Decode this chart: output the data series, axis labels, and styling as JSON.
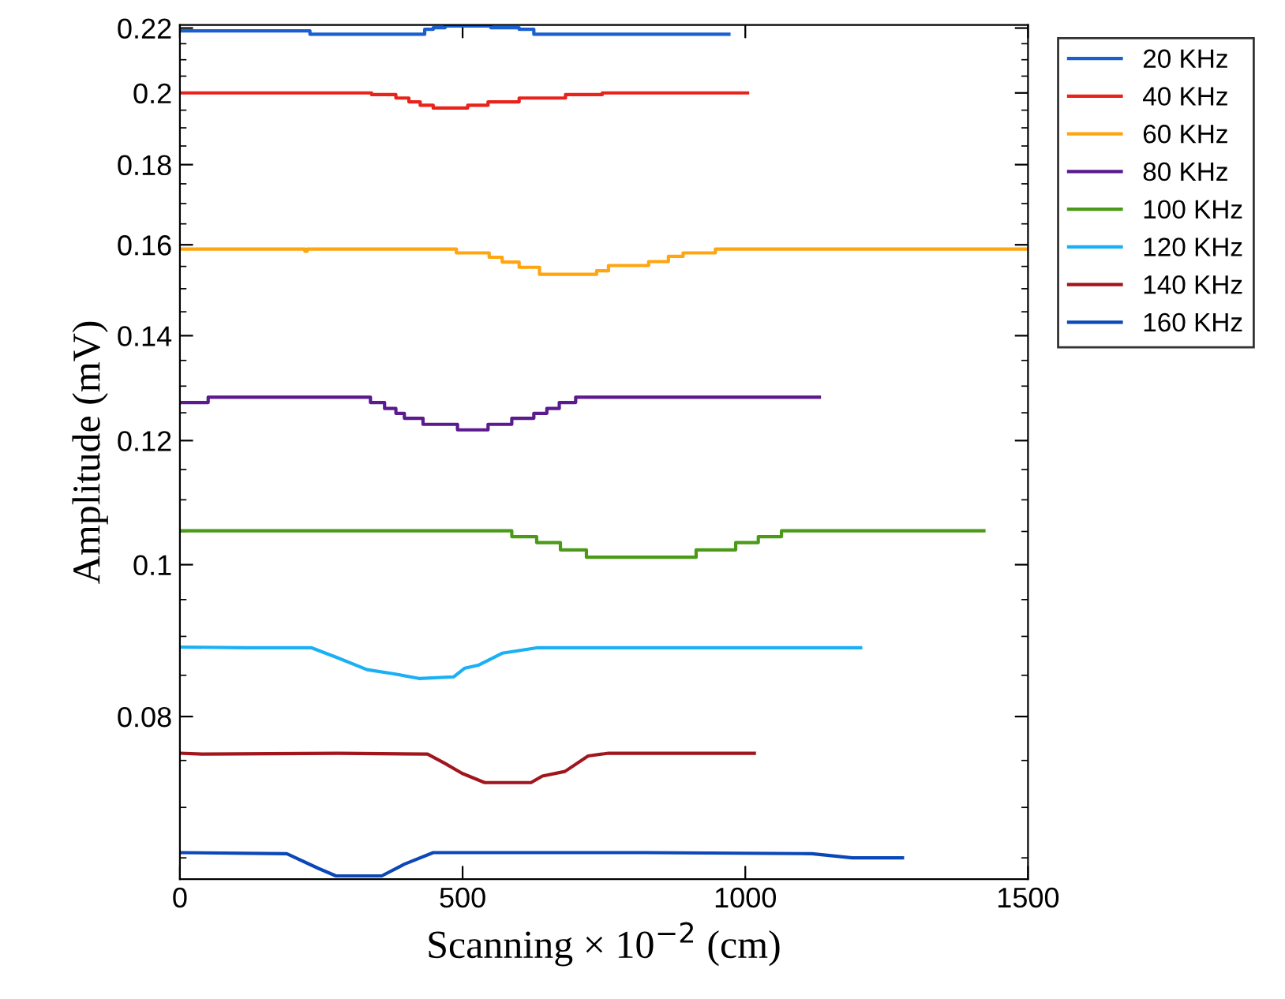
{
  "chart_data": {
    "type": "line",
    "xlabel": "Scanning × 10$^{−2}$ (cm)",
    "ylabel": "Amplitude (mV)",
    "log": "y",
    "xlim": [
      0,
      1500
    ],
    "xticks": [
      0,
      500,
      1000,
      1500
    ],
    "ylim": [
      0.063,
      0.221
    ],
    "yticks": [
      {
        "value": 0.065,
        "label": null
      },
      {
        "value": 0.07,
        "label": null
      },
      {
        "value": 0.075,
        "label": null
      },
      0.08,
      {
        "value": 0.085,
        "label": null
      },
      {
        "value": 0.09,
        "label": null
      },
      {
        "value": 0.095,
        "label": null
      },
      0.1,
      {
        "value": 0.105,
        "label": null
      },
      {
        "value": 0.11,
        "label": null
      },
      {
        "value": 0.115,
        "label": null
      },
      0.12,
      {
        "value": 0.125,
        "label": null
      },
      {
        "value": 0.13,
        "label": null
      },
      {
        "value": 0.135,
        "label": null
      },
      0.14,
      {
        "value": 0.145,
        "label": null
      },
      {
        "value": 0.15,
        "label": null
      },
      {
        "value": 0.155,
        "label": null
      },
      0.16,
      {
        "value": 0.165,
        "label": null
      },
      {
        "value": 0.17,
        "label": null
      },
      {
        "value": 0.175,
        "label": null
      },
      0.18,
      {
        "value": 0.185,
        "label": null
      },
      {
        "value": 0.19,
        "label": null
      },
      {
        "value": 0.195,
        "label": null
      },
      0.2,
      {
        "value": 0.205,
        "label": null
      },
      {
        "value": 0.21,
        "label": null
      },
      {
        "value": 0.215,
        "label": null
      },
      0.22
    ],
    "grid": false,
    "legend": "right",
    "marker": "none",
    "line_style": "solid",
    "series": [
      {
        "name": "20 KHz",
        "type": "step",
        "color": "#1a5fd0",
        "x": [
          0,
          230,
          433,
          448,
          469,
          550,
          600,
          626,
          971
        ],
        "values": [
          0.2191,
          0.218,
          0.2196,
          0.2201,
          0.2207,
          0.2201,
          0.2196,
          0.218,
          0.218
        ]
      },
      {
        "name": "40 KHz",
        "type": "step",
        "color": "#e8231b",
        "x": [
          0,
          339,
          382,
          405,
          425,
          448,
          509,
          545,
          600,
          682,
          747,
          1004
        ],
        "values": [
          0.2,
          0.1995,
          0.1985,
          0.1974,
          0.1964,
          0.1956,
          0.1964,
          0.1974,
          0.1985,
          0.1995,
          0.2,
          0.2
        ]
      },
      {
        "name": "60 KHz",
        "type": "step",
        "color": "#ffa510",
        "x": [
          0,
          221,
          225,
          489,
          547,
          570,
          600,
          636,
          737,
          758,
          829,
          864,
          890,
          947,
          1500
        ],
        "values": [
          0.159,
          0.1585,
          0.159,
          0.1581,
          0.1571,
          0.156,
          0.1548,
          0.1532,
          0.154,
          0.1552,
          0.1561,
          0.1573,
          0.1581,
          0.159,
          0.159
        ]
      },
      {
        "name": "80 KHz",
        "type": "step",
        "color": "#5b1a8e",
        "x": [
          0,
          50,
          337,
          362,
          382,
          397,
          430,
          491,
          545,
          587,
          626,
          649,
          671,
          700,
          1131
        ],
        "values": [
          0.1269,
          0.1279,
          0.1269,
          0.1258,
          0.1249,
          0.124,
          0.1229,
          0.1219,
          0.1229,
          0.124,
          0.1249,
          0.1258,
          0.1269,
          0.1279,
          0.1279
        ]
      },
      {
        "name": "100 KHz",
        "type": "step",
        "color": "#4a9a18",
        "x": [
          0,
          587,
          631,
          673,
          719,
          913,
          983,
          1023,
          1064,
          1422
        ],
        "values": [
          0.1051,
          0.1042,
          0.1033,
          0.1022,
          0.1011,
          0.1022,
          0.1033,
          0.1042,
          0.1051,
          0.1051
        ]
      },
      {
        "name": "120 KHz",
        "color": "#1ab0f5",
        "x": [
          0,
          118,
          233,
          276,
          331,
          377,
          423,
          484,
          504,
          529,
          570,
          631,
          1204
        ],
        "values": [
          0.0886,
          0.0885,
          0.0885,
          0.0873,
          0.0857,
          0.0852,
          0.0846,
          0.0848,
          0.0859,
          0.0863,
          0.0878,
          0.0885,
          0.0885
        ]
      },
      {
        "name": "140 KHz",
        "color": "#a0161c",
        "x": [
          0,
          40,
          280,
          438,
          468,
          499,
          539,
          621,
          641,
          681,
          722,
          758,
          1016
        ],
        "values": [
          0.0758,
          0.0757,
          0.0758,
          0.0757,
          0.0747,
          0.0736,
          0.0726,
          0.0726,
          0.0733,
          0.0738,
          0.0755,
          0.0758,
          0.0758
        ]
      },
      {
        "name": "160 KHz",
        "color": "#0b47b8",
        "x": [
          0,
          189,
          245,
          276,
          357,
          397,
          448,
          824,
          1118,
          1189,
          1278
        ],
        "values": [
          0.0655,
          0.0654,
          0.064,
          0.0633,
          0.0633,
          0.0644,
          0.0655,
          0.0655,
          0.0654,
          0.065,
          0.065
        ]
      }
    ]
  }
}
